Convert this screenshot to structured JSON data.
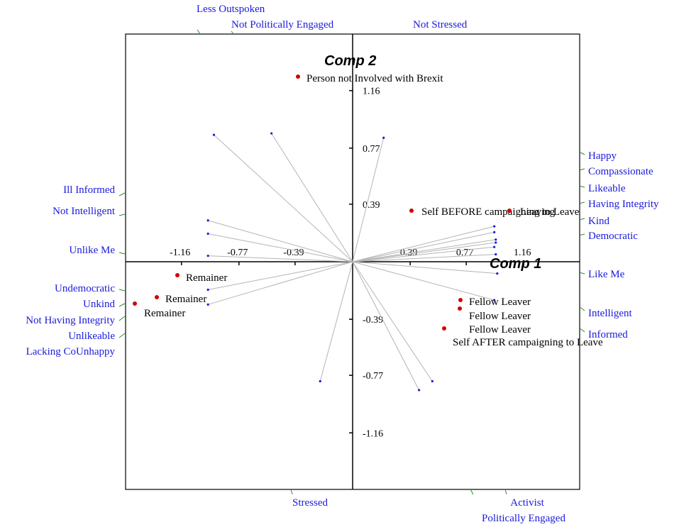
{
  "chart_data": {
    "type": "scatter",
    "title": "",
    "xlabel": "Comp 1",
    "ylabel": "Comp 2",
    "xlim": [
      -1.55,
      1.55
    ],
    "ylim": [
      -1.55,
      1.55
    ],
    "x_ticks": [
      "-1.16",
      "-0.77",
      "-0.39",
      "0.39",
      "0.77",
      "1.16"
    ],
    "y_ticks": [
      "1.16",
      "0.77",
      "0.39",
      "-0.39",
      "-0.77",
      "-1.16"
    ],
    "tick_values": [
      -1.16,
      -0.77,
      -0.39,
      0.39,
      0.77,
      1.16
    ],
    "elements": [
      {
        "label": "Person not Involved with Brexit",
        "x": -0.37,
        "y": 1.27
      },
      {
        "label": "Self BEFORE campaigning to Leave",
        "x": 0.4,
        "y": 0.34
      },
      {
        "label": "Leaving",
        "x": 1.07,
        "y": 0.34
      },
      {
        "label": "Remainer",
        "x": -1.19,
        "y": -0.09
      },
      {
        "label": "Remainer",
        "x": -1.33,
        "y": -0.24
      },
      {
        "label": "Remainer",
        "x": -1.47,
        "y": -0.28
      },
      {
        "label": "Fellow Leaver",
        "x": 0.74,
        "y": -0.26
      },
      {
        "label": "Fellow Leaver",
        "x": 0.74,
        "y": -0.31
      },
      {
        "label": "Fellow Leaver",
        "x": 0.63,
        "y": -0.45
      },
      {
        "label": "Self AFTER campaigning to Leave",
        "x": 0.63,
        "y": -0.45
      }
    ],
    "construct_vectors": [
      {
        "x": -0.94,
        "y": 0.86
      },
      {
        "x": -0.55,
        "y": 0.87
      },
      {
        "x": 0.21,
        "y": 0.84
      },
      {
        "x": -0.98,
        "y": 0.28
      },
      {
        "x": -0.98,
        "y": 0.19
      },
      {
        "x": -0.98,
        "y": 0.04
      },
      {
        "x": -0.98,
        "y": -0.19
      },
      {
        "x": -0.98,
        "y": -0.29
      },
      {
        "x": 0.96,
        "y": 0.24
      },
      {
        "x": 0.96,
        "y": 0.2
      },
      {
        "x": 0.97,
        "y": 0.15
      },
      {
        "x": 0.97,
        "y": 0.13
      },
      {
        "x": 0.96,
        "y": 0.1
      },
      {
        "x": 0.97,
        "y": 0.05
      },
      {
        "x": 0.98,
        "y": -0.08
      },
      {
        "x": 0.96,
        "y": -0.26
      },
      {
        "x": -0.22,
        "y": -0.81
      },
      {
        "x": 0.45,
        "y": -0.87
      },
      {
        "x": 0.54,
        "y": -0.81
      }
    ],
    "construct_labels": [
      {
        "label": "Less Outspoken",
        "side": "top"
      },
      {
        "label": "Not Politically Engaged",
        "side": "top"
      },
      {
        "label": "Not Stressed",
        "side": "top"
      },
      {
        "label": "Happy",
        "side": "right"
      },
      {
        "label": "Compassionate",
        "side": "right"
      },
      {
        "label": "Likeable",
        "side": "right"
      },
      {
        "label": "Having Integrity",
        "side": "right"
      },
      {
        "label": "Kind",
        "side": "right"
      },
      {
        "label": "Democratic",
        "side": "right"
      },
      {
        "label": "Like Me",
        "side": "right"
      },
      {
        "label": "Intelligent",
        "side": "right"
      },
      {
        "label": "Informed",
        "side": "right"
      },
      {
        "label": "Ill Informed",
        "side": "left"
      },
      {
        "label": "Not Intelligent",
        "side": "left"
      },
      {
        "label": "Unlike Me",
        "side": "left"
      },
      {
        "label": "Undemocratic",
        "side": "left"
      },
      {
        "label": "Unkind",
        "side": "left"
      },
      {
        "label": "Not Having Integrity",
        "side": "left"
      },
      {
        "label": "Unlikeable",
        "side": "left"
      },
      {
        "label": "Lacking CoUnhappy",
        "side": "left"
      },
      {
        "label": "Stressed",
        "side": "bottom"
      },
      {
        "label": "Activist",
        "side": "bottom"
      },
      {
        "label": "Politically Engaged",
        "side": "bottom"
      }
    ],
    "colors": {
      "elements": "#d00000",
      "constructs": "#1a1adc",
      "vectors": "#b4b4b4"
    },
    "grid": false
  }
}
